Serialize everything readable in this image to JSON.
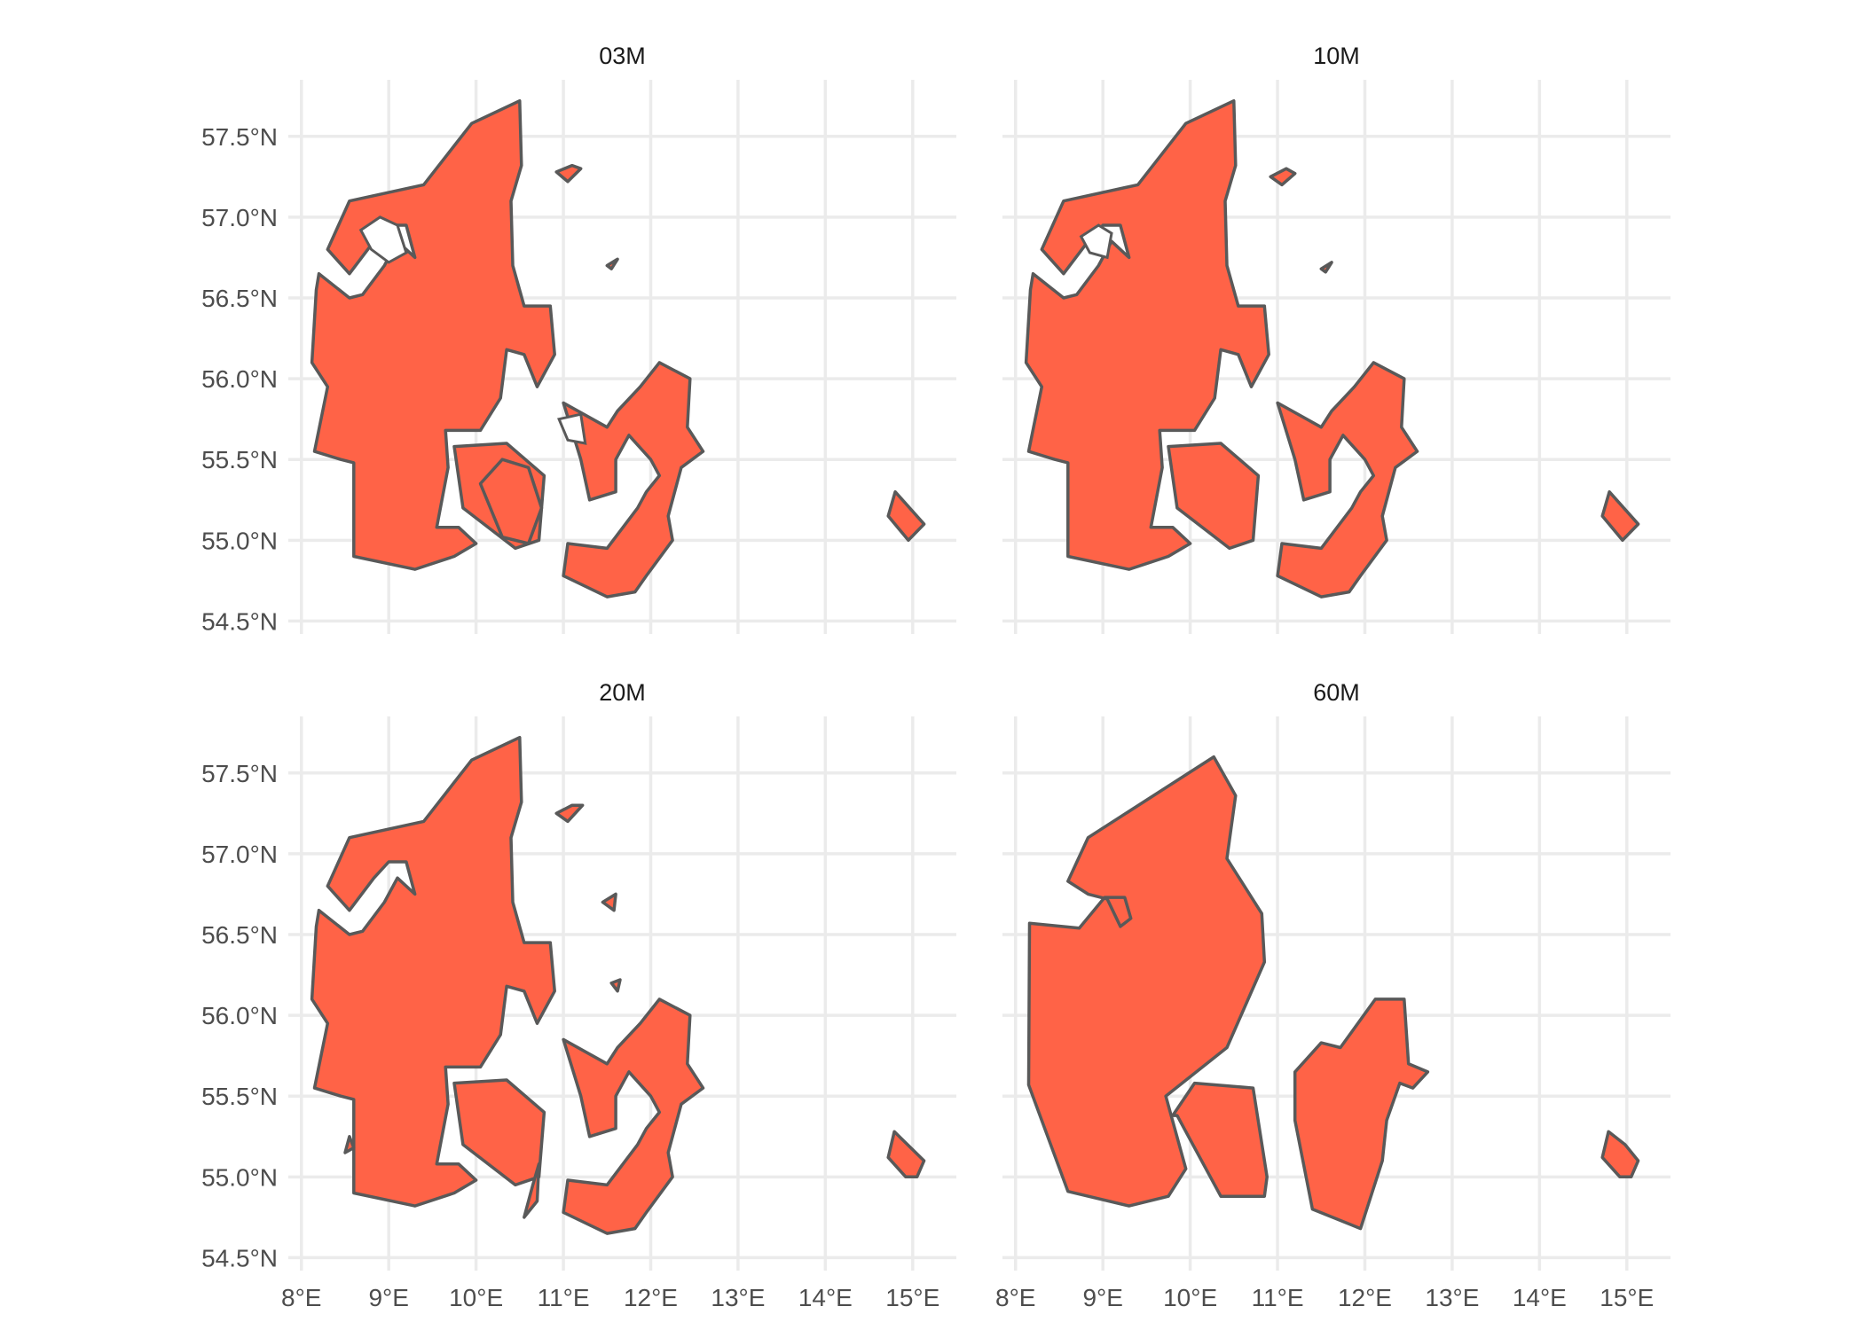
{
  "chart_data": {
    "type": "map",
    "facets": [
      "03M",
      "10M",
      "20M",
      "60M"
    ],
    "fill_color": "#ff6347",
    "border_color": "#595959",
    "grid": true,
    "x_ticks": [
      8,
      9,
      10,
      11,
      12,
      13,
      14,
      15
    ],
    "y_ticks": [
      54.5,
      55.0,
      55.5,
      56.0,
      56.5,
      57.0,
      57.5
    ],
    "x_tick_labels": [
      "8°E",
      "9°E",
      "10°E",
      "11°E",
      "12°E",
      "13°E",
      "14°E",
      "15°E"
    ],
    "y_tick_labels": [
      "54.5°N",
      "55.0°N",
      "55.5°N",
      "56.0°N",
      "56.5°N",
      "57.0°N",
      "57.5°N"
    ],
    "xlim": [
      7.85,
      15.5
    ],
    "ylim": [
      54.42,
      57.85
    ],
    "shapes": {
      "60M": [
        [
          [
            8.6,
            56.83
          ],
          [
            8.83,
            57.1
          ],
          [
            10.27,
            57.6
          ],
          [
            10.52,
            57.36
          ],
          [
            10.42,
            56.97
          ],
          [
            10.82,
            56.63
          ],
          [
            10.85,
            56.33
          ],
          [
            10.42,
            55.8
          ],
          [
            9.72,
            55.5
          ],
          [
            9.95,
            55.05
          ],
          [
            9.75,
            54.88
          ],
          [
            9.3,
            54.82
          ],
          [
            8.6,
            54.91
          ],
          [
            8.15,
            55.57
          ],
          [
            8.16,
            56.57
          ],
          [
            8.73,
            56.54
          ],
          [
            9.02,
            56.73
          ],
          [
            9.25,
            56.73
          ],
          [
            9.32,
            56.6
          ],
          [
            9.2,
            56.55
          ],
          [
            9.05,
            56.72
          ],
          [
            8.83,
            56.75
          ],
          [
            8.6,
            56.83
          ]
        ],
        [
          [
            9.8,
            55.38
          ],
          [
            10.05,
            55.58
          ],
          [
            10.72,
            55.55
          ],
          [
            10.88,
            55.0
          ],
          [
            10.85,
            54.88
          ],
          [
            10.35,
            54.88
          ],
          [
            9.85,
            55.38
          ]
        ],
        [
          [
            11.2,
            55.65
          ],
          [
            11.5,
            55.83
          ],
          [
            11.72,
            55.8
          ],
          [
            12.12,
            56.1
          ],
          [
            12.45,
            56.1
          ],
          [
            12.5,
            55.7
          ],
          [
            12.72,
            55.65
          ],
          [
            12.55,
            55.55
          ],
          [
            12.4,
            55.58
          ],
          [
            12.25,
            55.35
          ],
          [
            12.2,
            55.1
          ],
          [
            11.95,
            54.68
          ],
          [
            11.4,
            54.8
          ],
          [
            11.2,
            55.35
          ],
          [
            11.2,
            55.65
          ]
        ],
        [
          [
            14.72,
            55.12
          ],
          [
            14.79,
            55.28
          ],
          [
            14.98,
            55.2
          ],
          [
            15.13,
            55.1
          ],
          [
            15.05,
            55.0
          ],
          [
            14.92,
            55.0
          ],
          [
            14.72,
            55.12
          ]
        ]
      ],
      "20M": [
        [
          [
            8.3,
            56.8
          ],
          [
            8.55,
            57.1
          ],
          [
            9.4,
            57.2
          ],
          [
            9.95,
            57.58
          ],
          [
            10.5,
            57.72
          ],
          [
            10.52,
            57.32
          ],
          [
            10.4,
            57.1
          ],
          [
            10.42,
            56.7
          ],
          [
            10.55,
            56.45
          ],
          [
            10.85,
            56.45
          ],
          [
            10.9,
            56.15
          ],
          [
            10.7,
            55.95
          ],
          [
            10.55,
            56.15
          ],
          [
            10.35,
            56.18
          ],
          [
            10.28,
            55.88
          ],
          [
            10.05,
            55.68
          ],
          [
            9.65,
            55.68
          ],
          [
            9.68,
            55.45
          ],
          [
            9.55,
            55.08
          ],
          [
            9.8,
            55.08
          ],
          [
            10.0,
            54.98
          ],
          [
            9.75,
            54.9
          ],
          [
            9.3,
            54.82
          ],
          [
            8.6,
            54.9
          ],
          [
            8.6,
            55.48
          ],
          [
            8.45,
            55.5
          ],
          [
            8.15,
            55.55
          ],
          [
            8.3,
            55.95
          ],
          [
            8.12,
            56.1
          ],
          [
            8.17,
            56.55
          ],
          [
            8.2,
            56.65
          ],
          [
            8.55,
            56.5
          ],
          [
            8.7,
            56.52
          ],
          [
            8.95,
            56.7
          ],
          [
            9.1,
            56.85
          ],
          [
            9.3,
            56.75
          ],
          [
            9.2,
            56.95
          ],
          [
            9.0,
            56.95
          ],
          [
            8.83,
            56.85
          ],
          [
            8.55,
            56.65
          ],
          [
            8.3,
            56.8
          ]
        ],
        [
          [
            9.75,
            55.58
          ],
          [
            10.35,
            55.6
          ],
          [
            10.78,
            55.4
          ],
          [
            10.72,
            55.0
          ],
          [
            10.45,
            54.95
          ],
          [
            9.85,
            55.2
          ],
          [
            9.75,
            55.58
          ]
        ],
        [
          [
            11.0,
            55.85
          ],
          [
            11.5,
            55.7
          ],
          [
            11.62,
            55.8
          ],
          [
            11.88,
            55.95
          ],
          [
            12.1,
            56.1
          ],
          [
            12.45,
            56.0
          ],
          [
            12.42,
            55.7
          ],
          [
            12.6,
            55.55
          ],
          [
            12.35,
            55.45
          ],
          [
            12.2,
            55.15
          ],
          [
            12.25,
            55.0
          ],
          [
            11.95,
            54.78
          ],
          [
            11.82,
            54.68
          ],
          [
            11.5,
            54.65
          ],
          [
            11.0,
            54.78
          ],
          [
            11.05,
            54.98
          ],
          [
            11.5,
            54.95
          ],
          [
            11.85,
            55.2
          ],
          [
            11.95,
            55.3
          ],
          [
            12.1,
            55.4
          ],
          [
            12.0,
            55.5
          ],
          [
            11.75,
            55.65
          ],
          [
            11.6,
            55.5
          ],
          [
            11.6,
            55.3
          ],
          [
            11.3,
            55.25
          ],
          [
            11.2,
            55.5
          ],
          [
            11.0,
            55.85
          ]
        ]
      ]
    }
  }
}
